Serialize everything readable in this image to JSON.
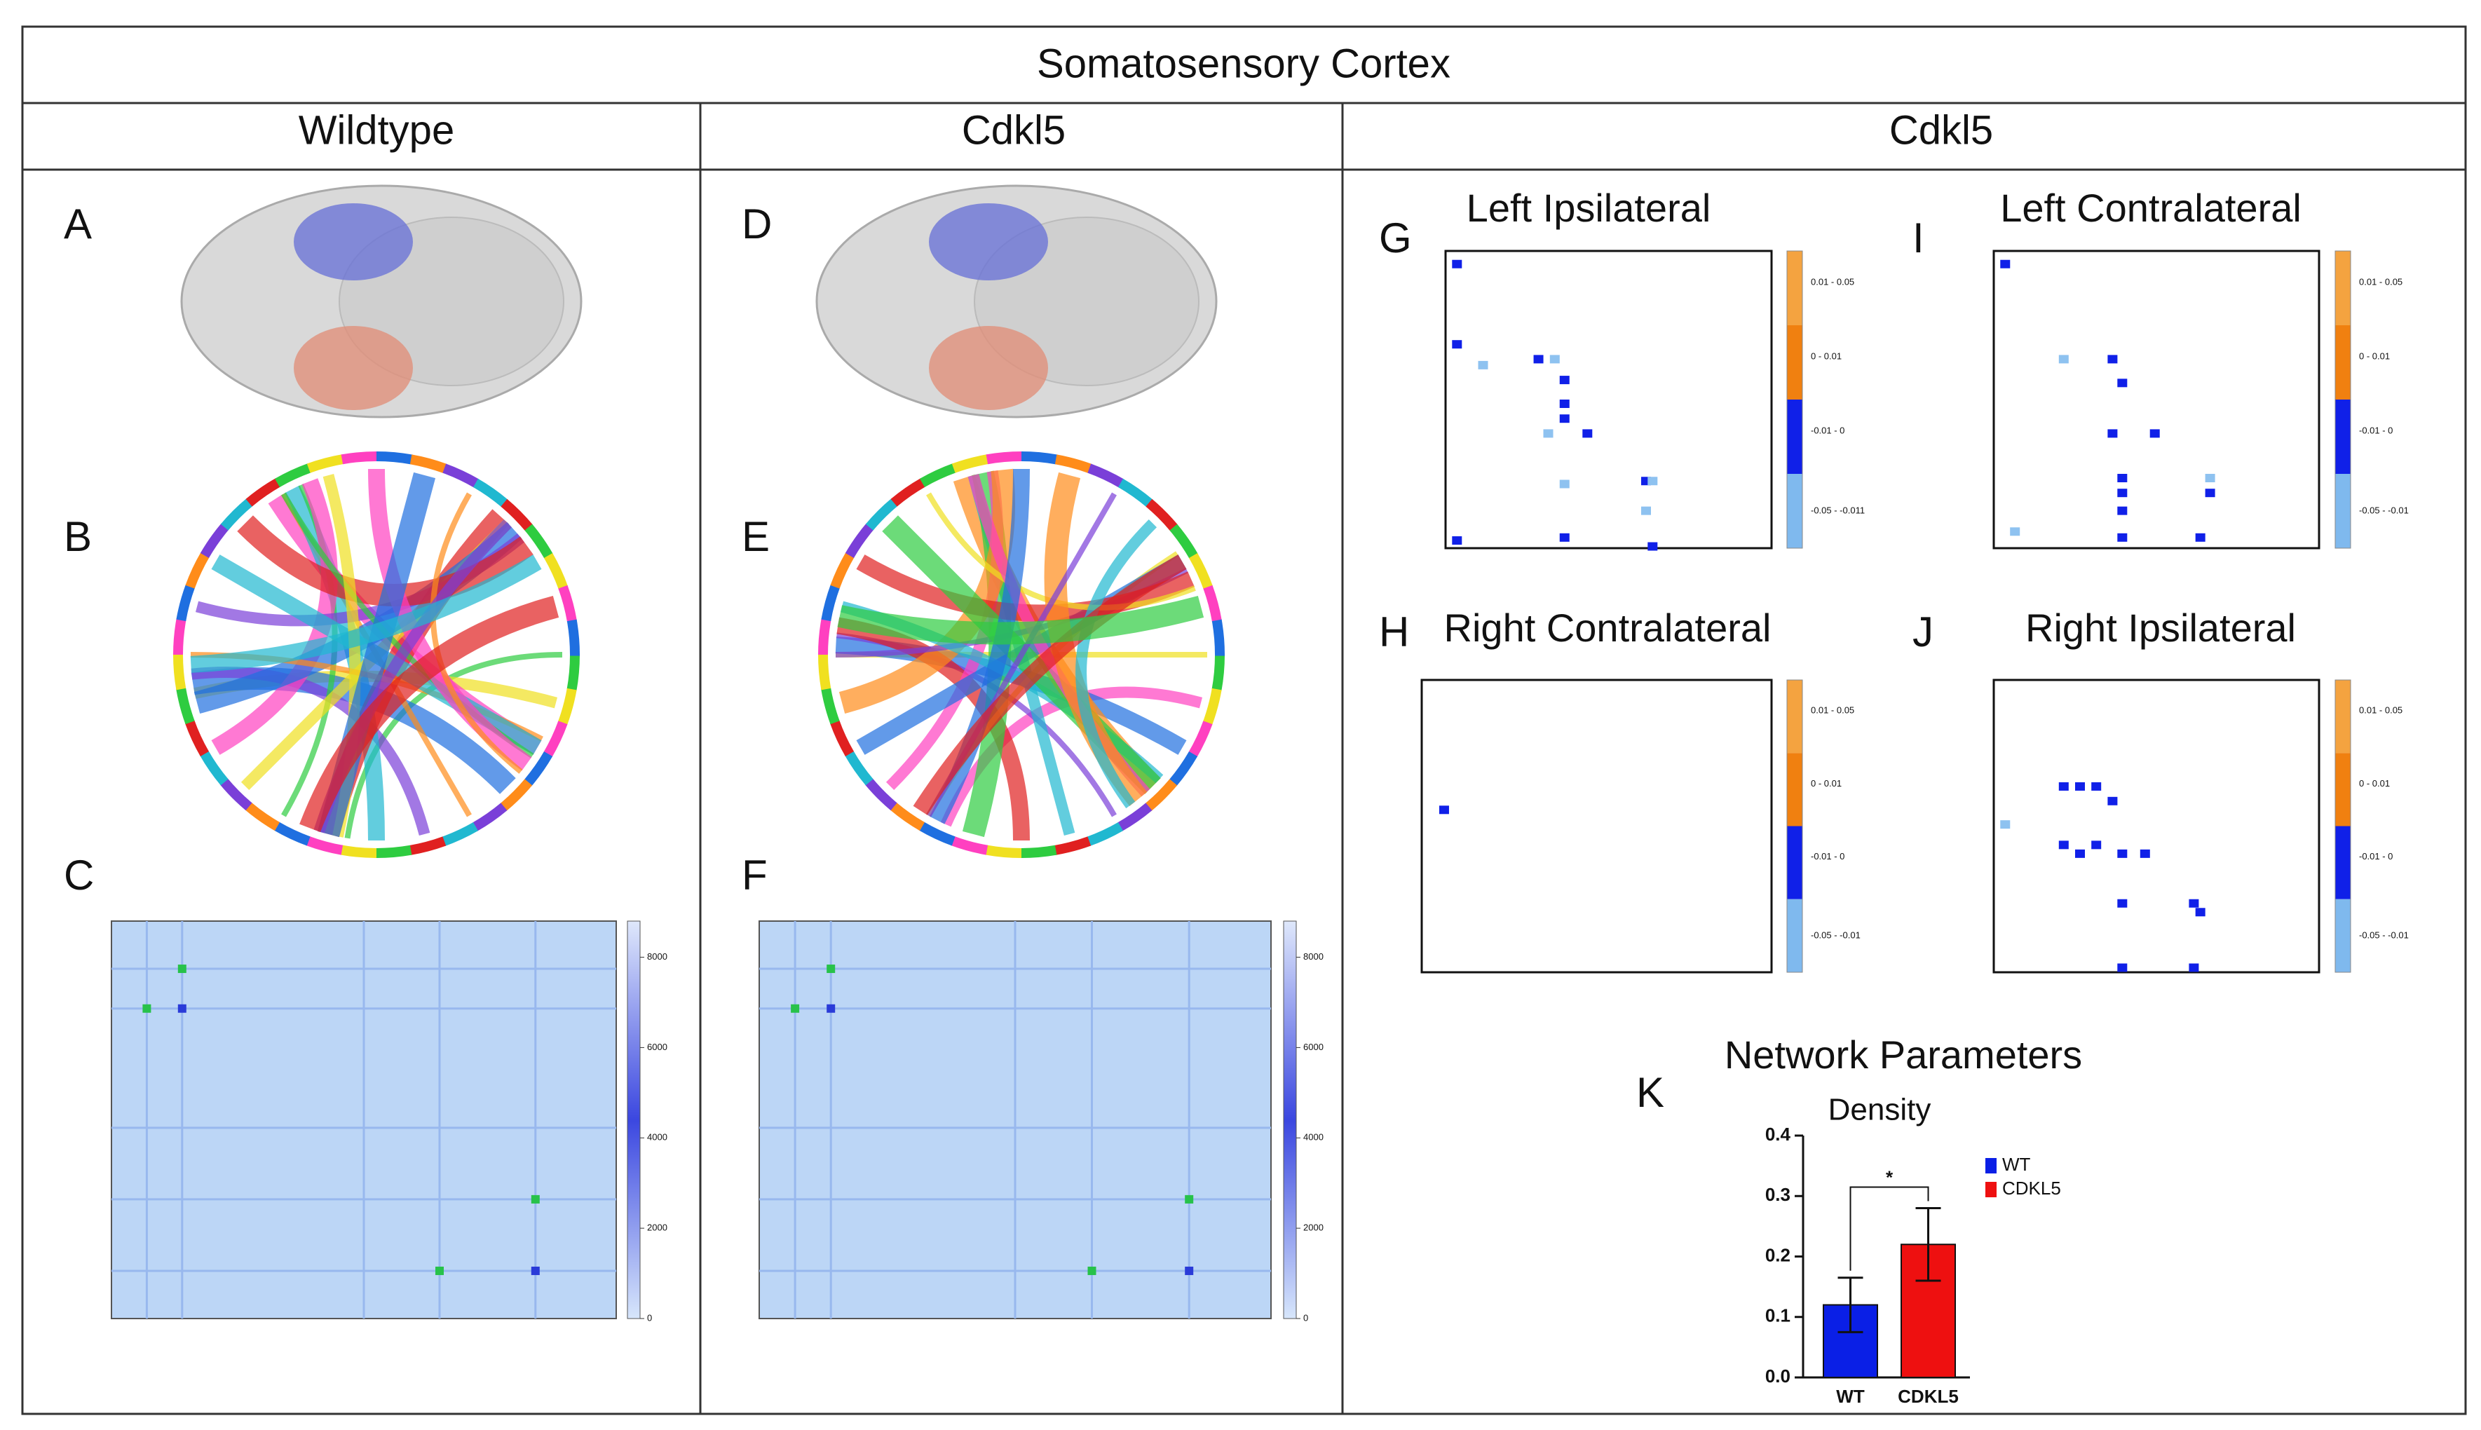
{
  "header": {
    "title": "Somatosensory Cortex",
    "columns": [
      "Wildtype",
      "Cdkl5",
      "Cdkl5"
    ]
  },
  "panels": {
    "letters": [
      "A",
      "B",
      "C",
      "D",
      "E",
      "F",
      "G",
      "H",
      "I",
      "J",
      "K"
    ]
  },
  "heatmaps": [
    {
      "ticks": [
        0,
        2000,
        4000,
        6000,
        8000
      ],
      "lim": [
        0,
        8800
      ]
    },
    {
      "ticks": [
        0,
        2000,
        4000,
        6000,
        8000
      ],
      "lim": [
        0,
        8800
      ]
    }
  ],
  "matrices": [
    {
      "title": "Left Ipsilateral",
      "legend": [
        "0.01 - 0.05",
        "0 - 0.01",
        "-0.01 - 0",
        "-0.05 - -0.011"
      ]
    },
    {
      "title": "Left Contralateral",
      "legend": [
        "0.01 - 0.05",
        "0 - 0.01",
        "-0.01 - 0",
        "-0.05 - -0.01"
      ]
    },
    {
      "title": "Right Contralateral",
      "legend": [
        "0.01 - 0.05",
        "0 - 0.01",
        "-0.01 - 0",
        "-0.05 - -0.01"
      ]
    },
    {
      "title": "Right Ipsilateral",
      "legend": [
        "0.01 - 0.05",
        "0 - 0.01",
        "-0.01 - 0",
        "-0.05 - -0.01"
      ]
    }
  ],
  "network": {
    "title": "Network Parameters"
  },
  "chart_data": {
    "type": "bar",
    "title": "Density",
    "categories": [
      "WT",
      "CDKL5"
    ],
    "values": [
      0.12,
      0.22
    ],
    "errors": [
      0.045,
      0.06
    ],
    "colors": [
      "#0a1fe6",
      "#ee1010"
    ],
    "ylim": [
      0,
      0.4
    ],
    "yticks": [
      {
        "value": 0,
        "label": "0.0"
      },
      0.1,
      0.2,
      0.3,
      0.4
    ],
    "significance": "*",
    "legend": "upper right"
  }
}
